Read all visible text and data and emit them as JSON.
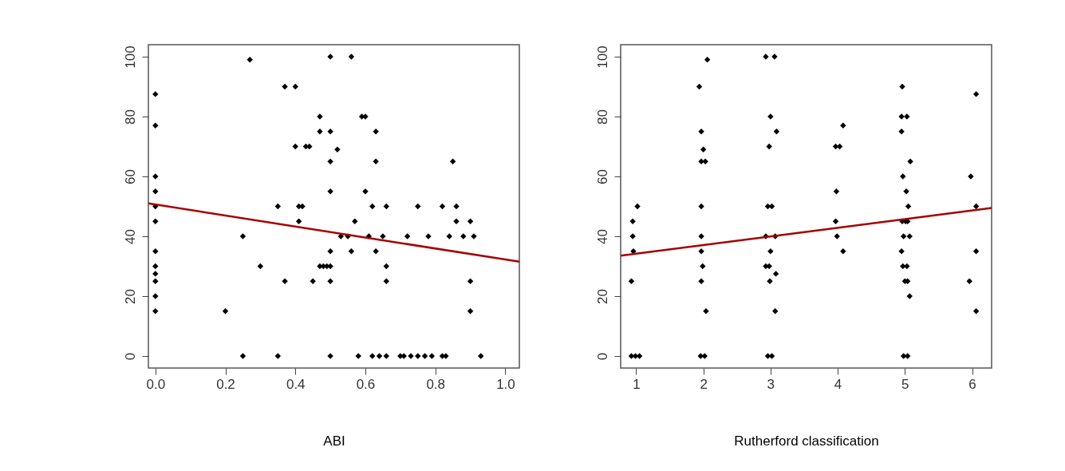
{
  "chart_data": [
    {
      "type": "scatter",
      "xlabel": "ABI",
      "grid": false,
      "xlim": [
        -0.02,
        1.04
      ],
      "ylim": [
        -4,
        104
      ],
      "xticks": [
        {
          "value": 0,
          "label": "0.0"
        },
        0.2,
        0.4,
        0.6,
        0.8,
        {
          "value": 1,
          "label": "1.0"
        }
      ],
      "yticks": [
        0,
        20,
        40,
        60,
        80,
        100
      ],
      "series": [
        {
          "marker": "diamond",
          "color": "#000000",
          "x": [
            0,
            0,
            0,
            0,
            0,
            0,
            0,
            0,
            0,
            0,
            0,
            0,
            0.2,
            0.25,
            0.25,
            0.27,
            0.3,
            0.35,
            0.35,
            0.37,
            0.37,
            0.4,
            0.4,
            0.41,
            0.41,
            0.42,
            0.43,
            0.44,
            0.45,
            0.47,
            0.47,
            0.47,
            0.48,
            0.49,
            0.5,
            0.5,
            0.5,
            0.5,
            0.5,
            0.5,
            0.5,
            0.5,
            0.52,
            0.53,
            0.55,
            0.56,
            0.56,
            0.57,
            0.58,
            0.59,
            0.6,
            0.6,
            0.61,
            0.62,
            0.62,
            0.63,
            0.63,
            0.63,
            0.64,
            0.65,
            0.66,
            0.66,
            0.66,
            0.66,
            0.7,
            0.71,
            0.72,
            0.73,
            0.75,
            0.75,
            0.77,
            0.78,
            0.79,
            0.82,
            0.82,
            0.83,
            0.84,
            0.85,
            0.86,
            0.86,
            0.88,
            0.9,
            0.9,
            0.9,
            0.91,
            0.93
          ],
          "values": [
            87.5,
            77,
            60,
            55,
            50,
            45,
            35,
            30,
            27.5,
            25,
            20,
            15,
            15,
            40,
            0,
            99,
            30,
            50,
            0,
            90,
            25,
            90,
            70,
            50,
            45,
            50,
            70,
            70,
            25,
            80,
            75,
            30,
            30,
            30,
            100,
            75,
            65,
            55,
            35,
            30,
            25,
            0,
            69,
            40,
            40,
            100,
            35,
            45,
            0,
            80,
            80,
            55,
            40,
            50,
            0,
            75,
            65,
            35,
            0,
            40,
            50,
            30,
            25,
            0,
            0,
            0,
            40,
            0,
            50,
            0,
            0,
            40,
            0,
            50,
            0,
            0,
            40,
            65,
            50,
            45,
            40,
            45,
            25,
            15,
            40,
            0
          ]
        },
        {
          "type": "line",
          "color": "#a50000",
          "x": [
            -0.02,
            1.04
          ],
          "values": [
            51,
            31.5
          ]
        }
      ]
    },
    {
      "type": "scatter",
      "xlabel": "Rutherford classification",
      "grid": false,
      "xlim": [
        0.77,
        6.29
      ],
      "ylim": [
        -4,
        104
      ],
      "xticks": [
        1,
        2,
        3,
        4,
        5,
        6
      ],
      "yticks": [
        0,
        20,
        40,
        60,
        80,
        100
      ],
      "series": [
        {
          "marker": "diamond",
          "color": "#000000",
          "x": [
            1.02,
            0.95,
            0.95,
            0.96,
            0.93,
            0.93,
            0.99,
            1.05,
            1.94,
            2.06,
            1.97,
            1.97,
            1.97,
            2.0,
            1.97,
            2.03,
            1.97,
            1.97,
            1.99,
            2.04,
            1.96,
            2.02,
            2.93,
            3.06,
            3.0,
            3.09,
            2.98,
            2.96,
            3.02,
            2.93,
            3.07,
            3.0,
            2.93,
            2.98,
            3.08,
            2.99,
            3.07,
            2.96,
            3.02,
            4.08,
            3.97,
            4.03,
            3.98,
            3.97,
            3.99,
            4.08,
            4.96,
            4.95,
            5.03,
            4.95,
            5.08,
            4.97,
            5.02,
            5.05,
            4.96,
            5.01,
            5.04,
            4.98,
            5.07,
            4.95,
            4.97,
            5.03,
            5.0,
            5.04,
            5.07,
            4.98,
            5.04,
            6.06,
            5.98,
            6.06,
            6.06,
            5.96,
            6.06
          ],
          "values": [
            50,
            45,
            40,
            35,
            25,
            0,
            0,
            0,
            90,
            99,
            75,
            50,
            40,
            69,
            65,
            65,
            35,
            25,
            30,
            15,
            0,
            0,
            100,
            100,
            80,
            75,
            70,
            50,
            50,
            40,
            40,
            35,
            30,
            30,
            27.5,
            25,
            15,
            0,
            0,
            77,
            70,
            70,
            55,
            45,
            40,
            35,
            90,
            80,
            80,
            75,
            65,
            60,
            55,
            50,
            45,
            45,
            45,
            40,
            40,
            35,
            30,
            30,
            25,
            25,
            20,
            0,
            0,
            87.5,
            60,
            50,
            35,
            25,
            15
          ]
        },
        {
          "type": "line",
          "color": "#a50000",
          "x": [
            0.77,
            6.29
          ],
          "values": [
            33.5,
            49.5
          ]
        }
      ]
    }
  ]
}
